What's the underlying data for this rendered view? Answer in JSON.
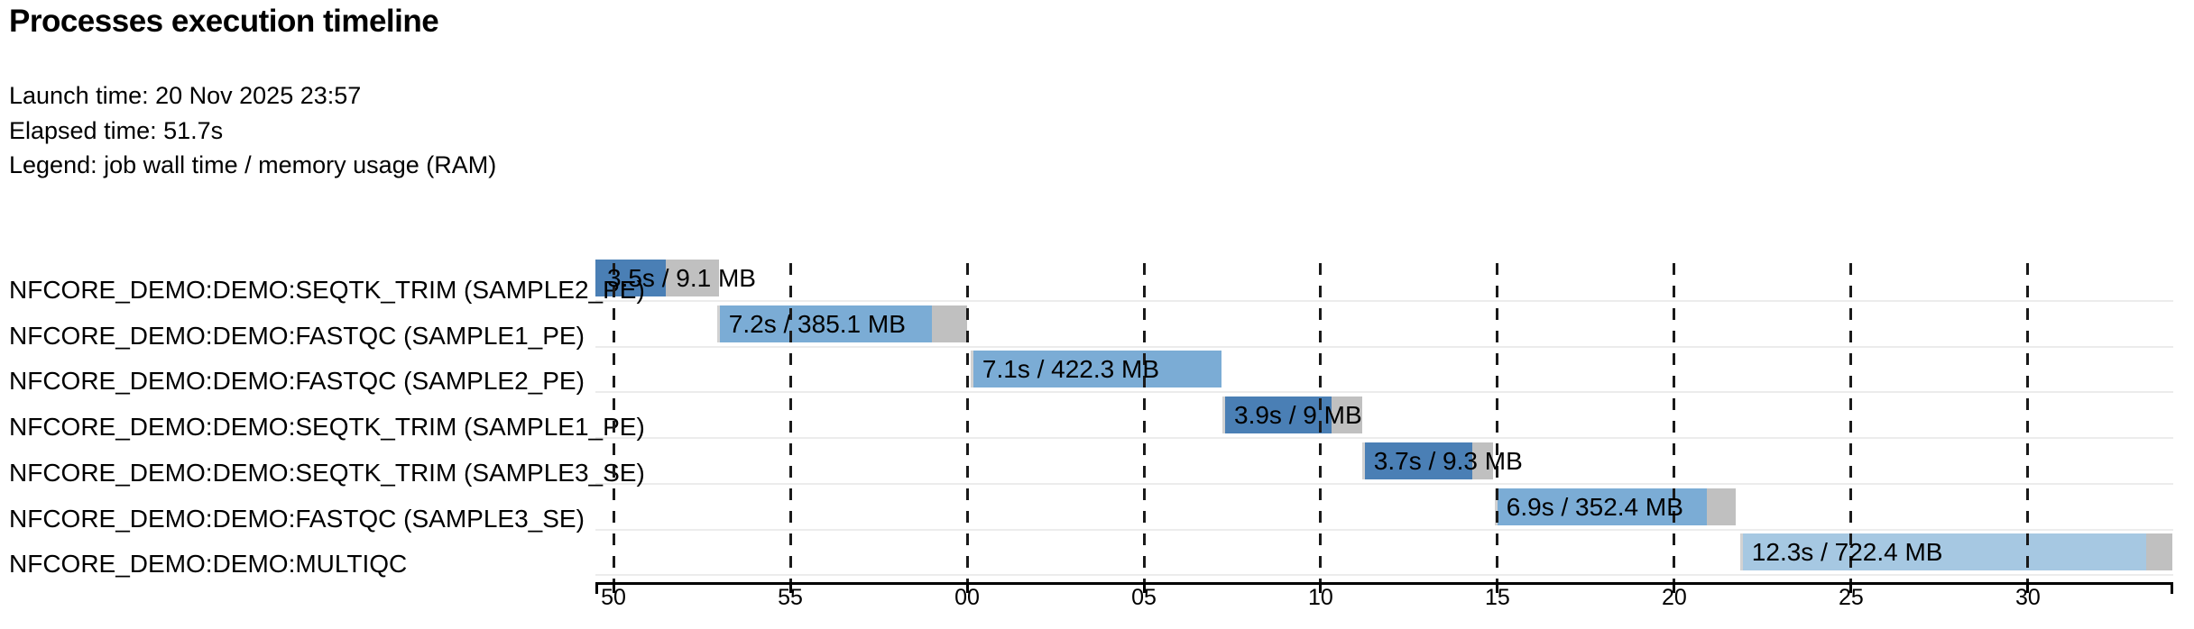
{
  "header": {
    "title": "Processes execution timeline",
    "launch_line": "Launch time: 20 Nov 2025 23:57",
    "elapsed_line": "Elapsed time: 51.7s",
    "legend_line": "Legend: job wall time / memory usage (RAM)"
  },
  "chart_data": {
    "type": "bar",
    "subtype": "gantt_process_timeline",
    "title": "Processes execution timeline",
    "legend": "job wall time / memory usage (RAM)",
    "launch_time": "20 Nov 2025 23:57",
    "elapsed_time_s": 51.7,
    "x_axis": {
      "unit": "second of minute (timeline crosses a minute boundary)",
      "domain_s": [
        49.49,
        94.11
      ],
      "ticks": [
        {
          "t": 50,
          "label": "50"
        },
        {
          "t": 55,
          "label": "55"
        },
        {
          "t": 60,
          "label": "00"
        },
        {
          "t": 65,
          "label": "05"
        },
        {
          "t": 70,
          "label": "10"
        },
        {
          "t": 75,
          "label": "15"
        },
        {
          "t": 80,
          "label": "20"
        },
        {
          "t": 85,
          "label": "25"
        },
        {
          "t": 90,
          "label": "30"
        }
      ],
      "grid": "dashed vertical line at every tick"
    },
    "tasks": [
      {
        "process": "NFCORE_DEMO:DEMO:SEQTK_TRIM (SAMPLE2_PE)",
        "caption": "3.5s / 9.1 MB",
        "wall_time_s": 3.5,
        "memory_mb": 9.1,
        "start_s": 49.49,
        "run_end_s": 51.48,
        "end_s": 52.98,
        "color": "seqtk_trim",
        "submit_sliver": false
      },
      {
        "process": "NFCORE_DEMO:DEMO:FASTQC (SAMPLE1_PE)",
        "caption": "7.2s / 385.1 MB",
        "wall_time_s": 7.2,
        "memory_mb": 385.1,
        "start_s": 52.93,
        "run_end_s": 59.01,
        "end_s": 60.0,
        "color": "fastqc",
        "submit_sliver": true
      },
      {
        "process": "NFCORE_DEMO:DEMO:FASTQC (SAMPLE2_PE)",
        "caption": "7.1s / 422.3 MB",
        "wall_time_s": 7.1,
        "memory_mb": 422.3,
        "start_s": 60.1,
        "run_end_s": 67.19,
        "end_s": 67.19,
        "color": "fastqc",
        "submit_sliver": true
      },
      {
        "process": "NFCORE_DEMO:DEMO:SEQTK_TRIM (SAMPLE1_PE)",
        "caption": "3.9s / 9 MB",
        "wall_time_s": 3.9,
        "memory_mb": 9,
        "start_s": 67.22,
        "run_end_s": 70.31,
        "end_s": 71.17,
        "color": "seqtk_trim",
        "submit_sliver": true
      },
      {
        "process": "NFCORE_DEMO:DEMO:SEQTK_TRIM (SAMPLE3_SE)",
        "caption": "3.7s / 9.3 MB",
        "wall_time_s": 3.7,
        "memory_mb": 9.3,
        "start_s": 71.17,
        "run_end_s": 74.29,
        "end_s": 74.87,
        "color": "seqtk_trim",
        "submit_sliver": true
      },
      {
        "process": "NFCORE_DEMO:DEMO:FASTQC (SAMPLE3_SE)",
        "caption": "6.9s / 352.4 MB",
        "wall_time_s": 6.9,
        "memory_mb": 352.4,
        "start_s": 74.92,
        "run_end_s": 80.92,
        "end_s": 81.73,
        "color": "fastqc",
        "submit_sliver": true
      },
      {
        "process": "NFCORE_DEMO:DEMO:MULTIQC",
        "caption": "12.3s / 722.4 MB",
        "wall_time_s": 12.3,
        "memory_mb": 722.4,
        "start_s": 81.86,
        "run_end_s": 93.34,
        "end_s": 94.08,
        "color": "multiqc",
        "submit_sliver": true
      }
    ],
    "palette": {
      "seqtk_trim": "#4a7fb5",
      "fastqc": "#7bacd5",
      "multiqc": "#a6c8e2",
      "tail": "#c0c0c0",
      "submit": "#d2d2d2",
      "row_separator": "#ececec",
      "grid": "#1a1a1a",
      "axis": "#000000",
      "text": "#000000"
    }
  }
}
